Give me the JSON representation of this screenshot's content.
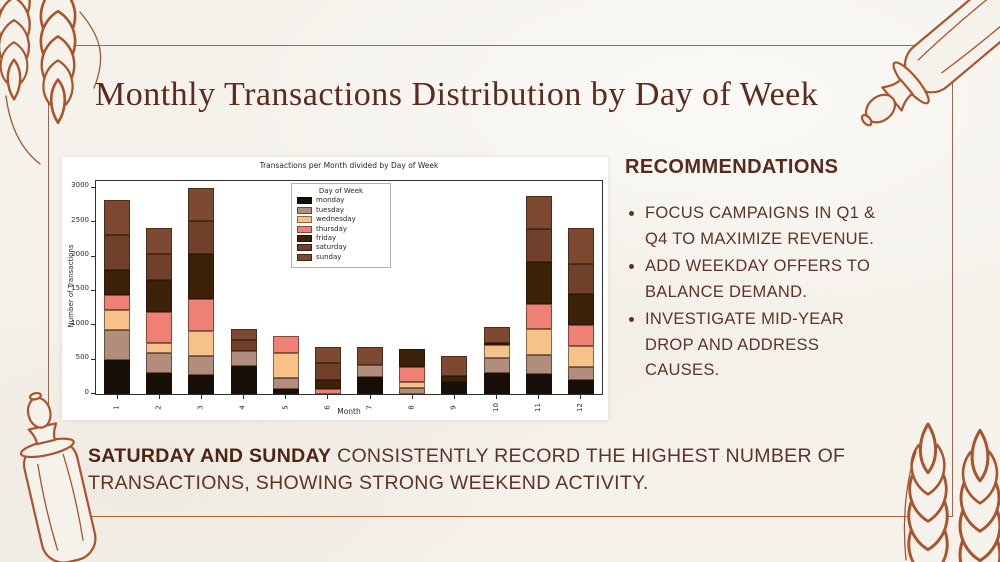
{
  "slide": {
    "title": "Monthly Transactions Distribution by Day of Week",
    "background_color": "#f5f2ec",
    "accent_color": "#a9542c",
    "frame_color": "#b2603a",
    "text_color": "#5d3424"
  },
  "recommendations": {
    "heading": "RECOMMENDATIONS",
    "items": [
      "FOCUS CAMPAIGNS IN Q1 & Q4 TO MAXIMIZE REVENUE.",
      "ADD WEEKDAY OFFERS TO BALANCE DEMAND.",
      "INVESTIGATE MID-YEAR DROP AND ADDRESS CAUSES."
    ]
  },
  "summary": {
    "highlight": "SATURDAY AND SUNDAY",
    "text": " CONSISTENTLY RECORD THE HIGHEST NUMBER OF TRANSACTIONS, SHOWING STRONG WEEKEND ACTIVITY."
  },
  "decorations": {
    "top_left": "wheat-ears",
    "top_right": "rolling-pin",
    "bottom_left": "rolling-pin",
    "bottom_right": "wheat-ears"
  },
  "chart_data": {
    "type": "bar",
    "stacked": true,
    "title": "Transactions per Month divided by Day of Week",
    "xlabel": "Month",
    "ylabel": "Number of Transactions",
    "categories": [
      "1",
      "2",
      "3",
      "4",
      "5",
      "6",
      "7",
      "8",
      "9",
      "10",
      "11",
      "12"
    ],
    "yticks": [
      0,
      500,
      1000,
      1500,
      2000,
      2500,
      3000
    ],
    "ylim": [
      0,
      3100
    ],
    "grid": false,
    "legend_title": "Day of Week",
    "legend_position": "upper center",
    "series": [
      {
        "name": "monday",
        "color": "#170e07",
        "values": [
          490,
          300,
          270,
          410,
          80,
          0,
          250,
          0,
          180,
          300,
          290,
          210
        ]
      },
      {
        "name": "tuesday",
        "color": "#b28d7c",
        "values": [
          440,
          290,
          290,
          210,
          150,
          0,
          170,
          90,
          0,
          220,
          280,
          190
        ]
      },
      {
        "name": "wednesday",
        "color": "#f6c289",
        "values": [
          290,
          150,
          350,
          0,
          370,
          0,
          0,
          90,
          0,
          190,
          375,
          295
        ]
      },
      {
        "name": "thursday",
        "color": "#ee8173",
        "values": [
          215,
          460,
          480,
          0,
          240,
          70,
          0,
          220,
          0,
          0,
          370,
          315
        ]
      },
      {
        "name": "friday",
        "color": "#3a2108",
        "values": [
          365,
          460,
          650,
          0,
          0,
          130,
          0,
          250,
          80,
          40,
          600,
          445
        ]
      },
      {
        "name": "saturday",
        "color": "#70402a",
        "values": [
          510,
          380,
          480,
          170,
          0,
          250,
          0,
          0,
          0,
          0,
          480,
          440
        ]
      },
      {
        "name": "sunday",
        "color": "#7d4a31",
        "values": [
          520,
          380,
          480,
          160,
          0,
          240,
          270,
          0,
          290,
          230,
          485,
          525
        ]
      }
    ],
    "totals": [
      2830,
      2420,
      3000,
      950,
      840,
      690,
      690,
      650,
      550,
      980,
      2880,
      2420
    ]
  }
}
